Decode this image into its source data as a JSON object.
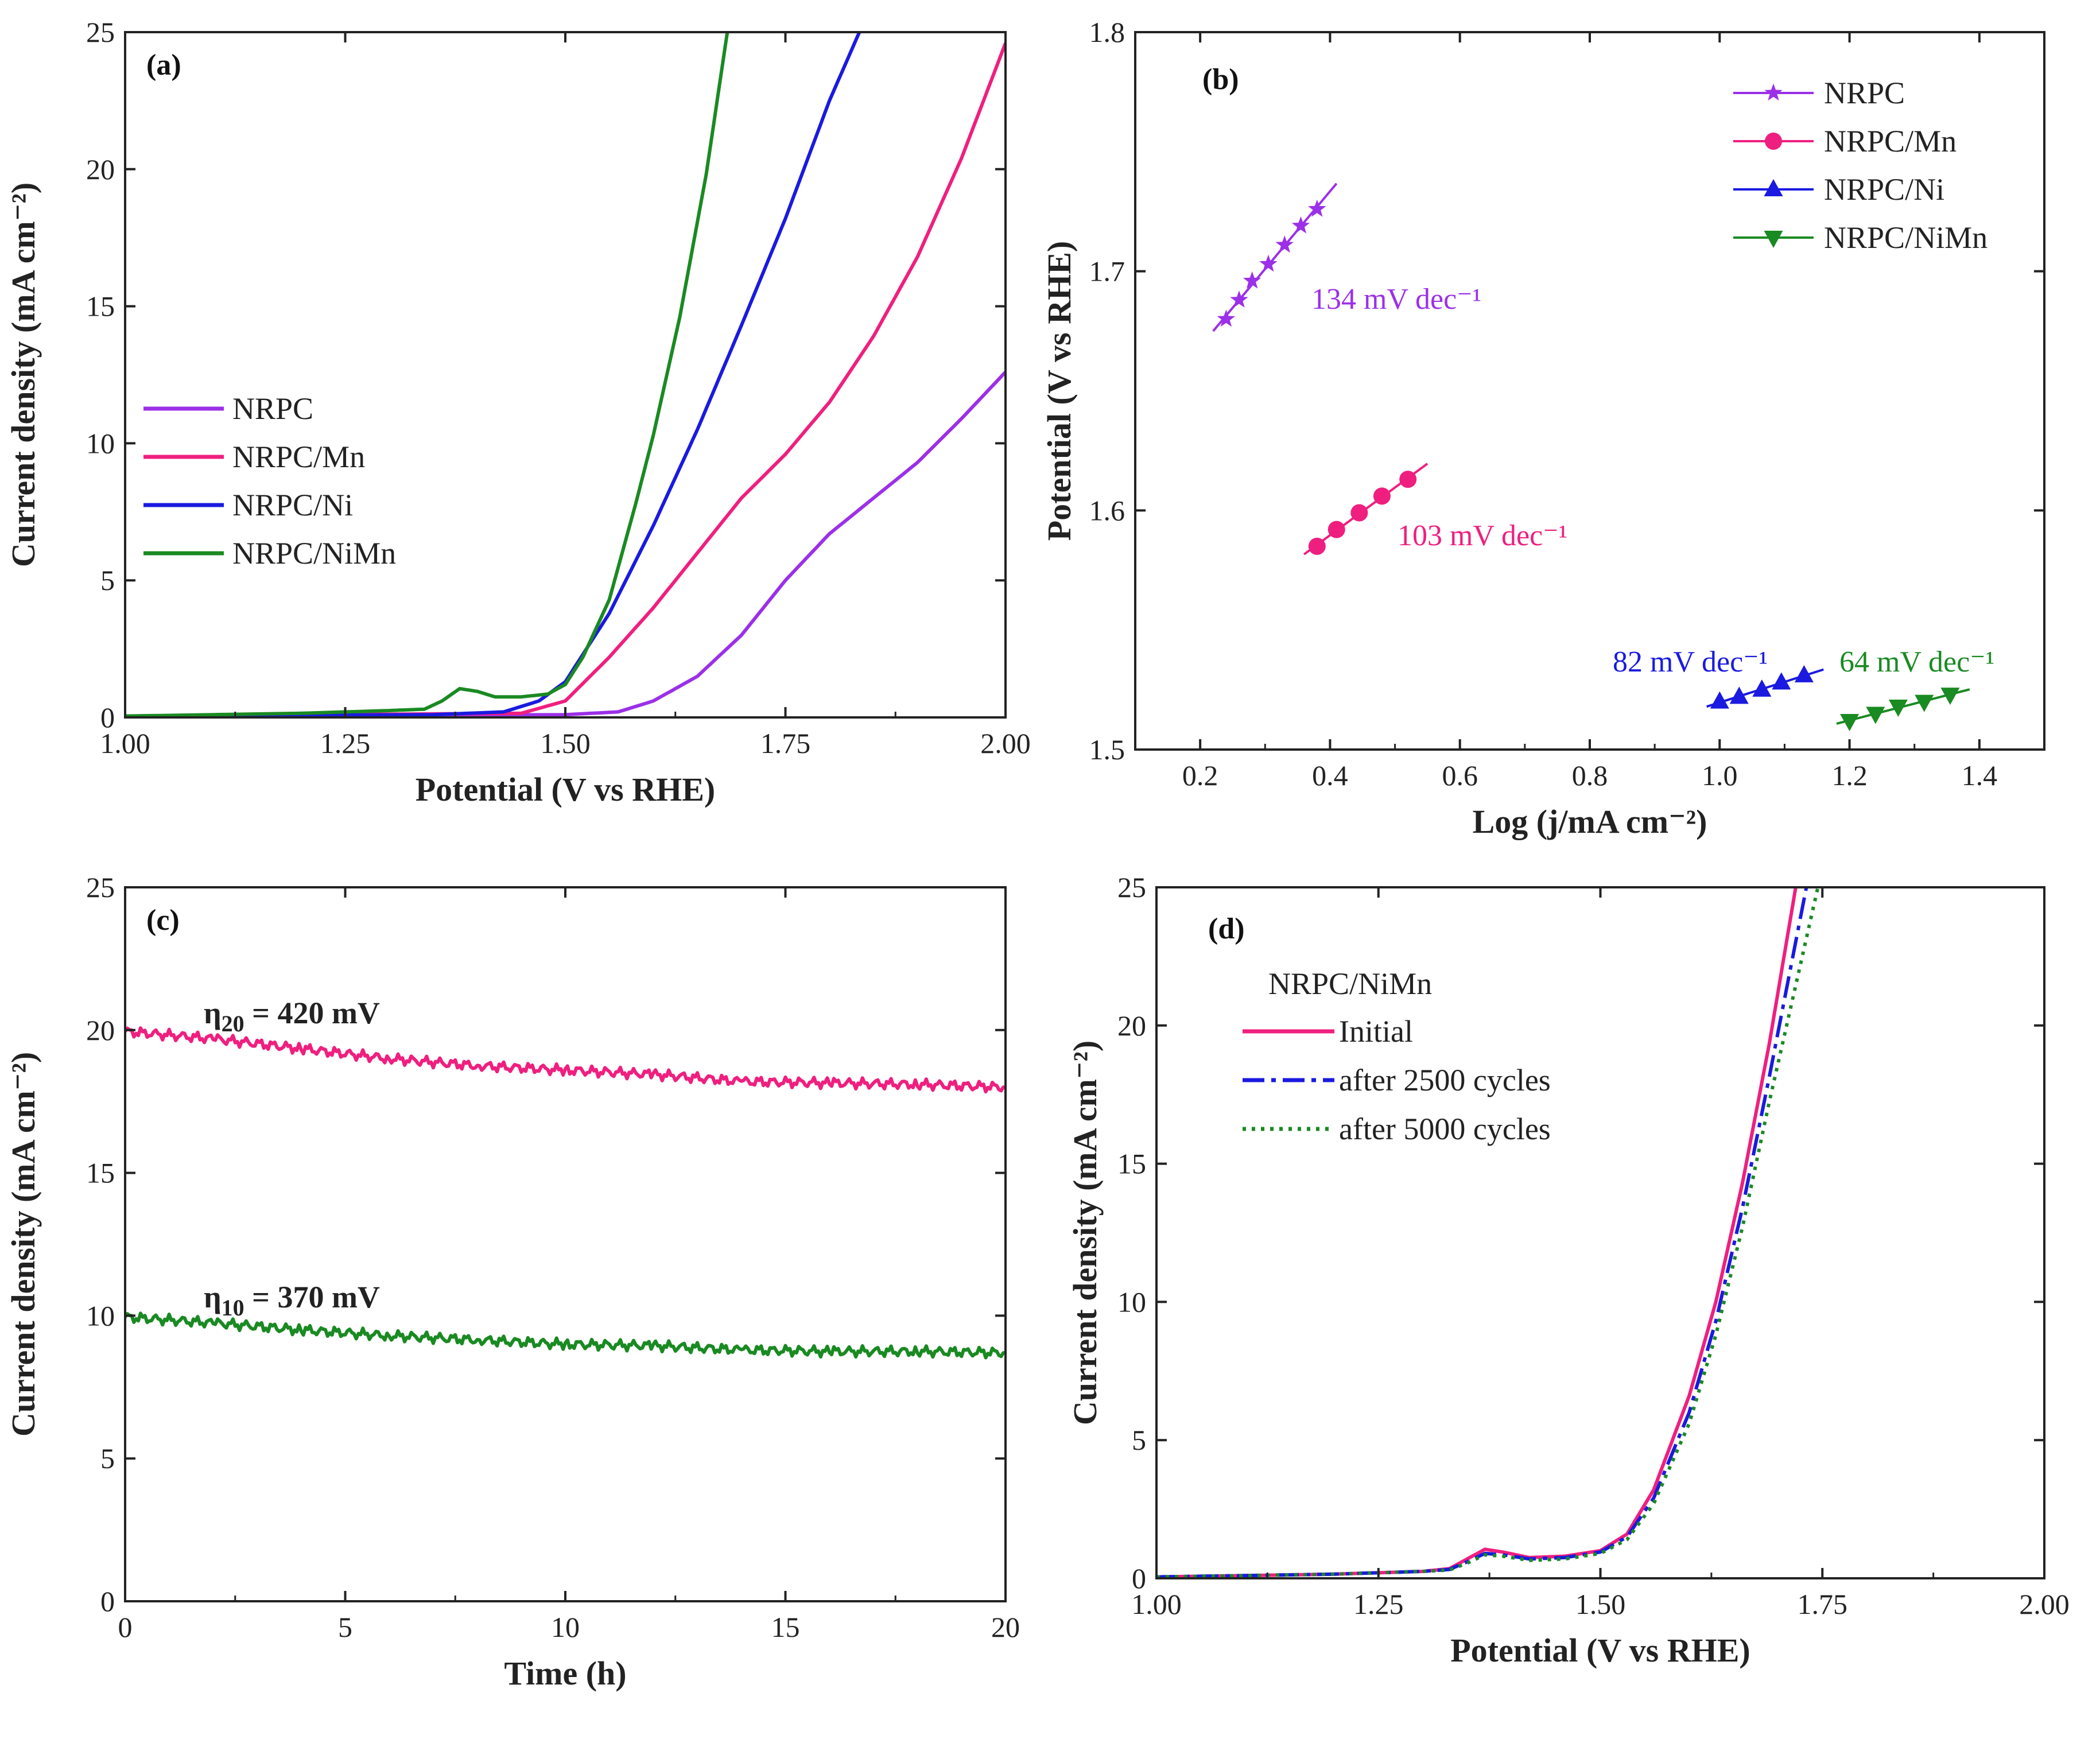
{
  "chart_data": [
    {
      "id": "a",
      "type": "line",
      "panel_label": "(a)",
      "xlabel": "Potential (V vs RHE)",
      "ylabel": "Current density (mA cm⁻²)",
      "xlim": [
        1.0,
        2.0
      ],
      "ylim": [
        0,
        25
      ],
      "xticks": [
        1.0,
        1.25,
        1.5,
        1.75,
        2.0
      ],
      "xtick_labels": [
        "1.00",
        "1.25",
        "1.50",
        "1.75",
        "2.00"
      ],
      "yticks": [
        0,
        5,
        10,
        15,
        20,
        25
      ],
      "ytick_labels": [
        "0",
        "5",
        "10",
        "15",
        "20",
        "25"
      ],
      "legend_position": "center-left",
      "series": [
        {
          "name": "NRPC",
          "color": "#9b30e8",
          "dash": "solid",
          "x": [
            1.0,
            1.5,
            1.56,
            1.6,
            1.65,
            1.7,
            1.75,
            1.8,
            1.85,
            1.9,
            1.95,
            2.0
          ],
          "y": [
            0.05,
            0.1,
            0.2,
            0.6,
            1.5,
            3.0,
            5.0,
            6.7,
            8.0,
            9.3,
            10.9,
            12.6
          ]
        },
        {
          "name": "NRPC/Mn",
          "color": "#ef1f7f",
          "dash": "solid",
          "x": [
            1.0,
            1.45,
            1.5,
            1.55,
            1.6,
            1.65,
            1.7,
            1.75,
            1.8,
            1.85,
            1.9,
            1.95,
            2.0
          ],
          "y": [
            0.05,
            0.15,
            0.6,
            2.2,
            4.0,
            6.0,
            8.0,
            9.6,
            11.5,
            13.9,
            16.8,
            20.4,
            24.6
          ]
        },
        {
          "name": "NRPC/Ni",
          "color": "#1a1ae0",
          "dash": "solid",
          "x": [
            1.0,
            1.35,
            1.43,
            1.47,
            1.5,
            1.55,
            1.6,
            1.65,
            1.7,
            1.75,
            1.8,
            1.834
          ],
          "y": [
            0.05,
            0.1,
            0.2,
            0.6,
            1.3,
            3.8,
            7.0,
            10.5,
            14.3,
            18.2,
            22.5,
            25.0
          ]
        },
        {
          "name": "NRPC/NiMn",
          "color": "#1a8a22",
          "dash": "solid",
          "x": [
            1.0,
            1.2,
            1.3,
            1.34,
            1.36,
            1.38,
            1.4,
            1.42,
            1.45,
            1.48,
            1.5,
            1.52,
            1.55,
            1.58,
            1.6,
            1.63,
            1.66,
            1.684
          ],
          "y": [
            0.05,
            0.15,
            0.25,
            0.3,
            0.6,
            1.05,
            0.95,
            0.75,
            0.75,
            0.85,
            1.2,
            2.2,
            4.3,
            7.8,
            10.3,
            14.6,
            19.8,
            25.0
          ]
        }
      ]
    },
    {
      "id": "b",
      "type": "scatter",
      "panel_label": "(b)",
      "xlabel": "Log (j/mA cm⁻²)",
      "ylabel": "Potential (V vs RHE)",
      "xlim": [
        0.1,
        1.5
      ],
      "ylim": [
        1.5,
        1.8
      ],
      "xticks": [
        0.2,
        0.4,
        0.6,
        0.8,
        1.0,
        1.2,
        1.4
      ],
      "xtick_labels": [
        "0.2",
        "0.4",
        "0.6",
        "0.8",
        "1.0",
        "1.2",
        "1.4"
      ],
      "yticks": [
        1.5,
        1.6,
        1.7,
        1.8
      ],
      "ytick_labels": [
        "1.5",
        "1.6",
        "1.7",
        "1.8"
      ],
      "legend_position": "top-right",
      "series": [
        {
          "name": "NRPC",
          "color": "#9b30e8",
          "marker": "star",
          "tafel": "134 mV dec⁻¹",
          "x": [
            0.24,
            0.26,
            0.28,
            0.305,
            0.33,
            0.355,
            0.38
          ],
          "y": [
            1.68,
            1.688,
            1.696,
            1.703,
            1.711,
            1.719,
            1.726
          ]
        },
        {
          "name": "NRPC/Mn",
          "color": "#ef1f7f",
          "marker": "circle",
          "tafel": "103 mV dec⁻¹",
          "x": [
            0.38,
            0.41,
            0.445,
            0.48,
            0.52
          ],
          "y": [
            1.585,
            1.592,
            1.599,
            1.606,
            1.613
          ]
        },
        {
          "name": "NRPC/Ni",
          "color": "#1a1ae0",
          "marker": "triangle-up",
          "tafel": "82 mV dec⁻¹",
          "x": [
            1.0,
            1.03,
            1.065,
            1.095,
            1.13
          ],
          "y": [
            1.52,
            1.522,
            1.525,
            1.528,
            1.531
          ]
        },
        {
          "name": "NRPC/NiMn",
          "color": "#1a8a22",
          "marker": "triangle-down",
          "tafel": "64 mV dec⁻¹",
          "x": [
            1.2,
            1.24,
            1.275,
            1.315,
            1.355
          ],
          "y": [
            1.512,
            1.515,
            1.518,
            1.52,
            1.523
          ]
        }
      ]
    },
    {
      "id": "c",
      "type": "line",
      "panel_label": "(c)",
      "xlabel": "Time (h)",
      "ylabel": "Current density (mA cm⁻²)",
      "xlim": [
        0,
        20
      ],
      "ylim": [
        0,
        25
      ],
      "xticks": [
        0,
        5,
        10,
        15,
        20
      ],
      "xtick_labels": [
        "0",
        "5",
        "10",
        "15",
        "20"
      ],
      "yticks": [
        0,
        5,
        10,
        15,
        20,
        25
      ],
      "ytick_labels": [
        "0",
        "5",
        "10",
        "15",
        "20",
        "25"
      ],
      "annotations": [
        {
          "eta": "η",
          "sub": "20",
          "rest": " = 420 mV"
        },
        {
          "eta": "η",
          "sub": "10",
          "rest": " = 370 mV"
        }
      ],
      "series": [
        {
          "name": "η₂₀ = 420 mV",
          "color": "#ef1f7f",
          "dash": "solid",
          "x": [
            0,
            2,
            4,
            6,
            8,
            10,
            12,
            14,
            16,
            18,
            20
          ],
          "y": [
            19.95,
            19.7,
            19.35,
            19.0,
            18.75,
            18.6,
            18.45,
            18.2,
            18.15,
            18.1,
            18.0
          ]
        },
        {
          "name": "η₁₀ = 370 mV",
          "color": "#1a8a22",
          "dash": "solid",
          "x": [
            0,
            2,
            4,
            6,
            8,
            10,
            12,
            14,
            16,
            18,
            20
          ],
          "y": [
            9.95,
            9.75,
            9.5,
            9.3,
            9.15,
            9.0,
            8.95,
            8.8,
            8.75,
            8.75,
            8.7
          ]
        }
      ]
    },
    {
      "id": "d",
      "type": "line",
      "panel_label": "(d)",
      "legend_title": "NRPC/NiMn",
      "xlabel": "Potential (V vs RHE)",
      "ylabel": "Current density (mA cm⁻²)",
      "xlim": [
        1.0,
        2.0
      ],
      "ylim": [
        0,
        25
      ],
      "xticks": [
        1.0,
        1.25,
        1.5,
        1.75,
        2.0
      ],
      "xtick_labels": [
        "1.00",
        "1.25",
        "1.50",
        "1.75",
        "2.00"
      ],
      "yticks": [
        0,
        5,
        10,
        15,
        20,
        25
      ],
      "ytick_labels": [
        "0",
        "5",
        "10",
        "15",
        "20",
        "25"
      ],
      "legend_position": "top-left",
      "series": [
        {
          "name": "Initial",
          "color": "#ef1f7f",
          "dash": "solid",
          "x": [
            1.0,
            1.2,
            1.3,
            1.33,
            1.35,
            1.37,
            1.39,
            1.42,
            1.46,
            1.5,
            1.53,
            1.56,
            1.6,
            1.63,
            1.66,
            1.69,
            1.72
          ],
          "y": [
            0.05,
            0.15,
            0.25,
            0.35,
            0.7,
            1.05,
            0.95,
            0.75,
            0.8,
            1.0,
            1.6,
            3.2,
            6.6,
            10.0,
            14.3,
            19.3,
            25.0
          ]
        },
        {
          "name": "after 2500 cycles",
          "color": "#1a1ae0",
          "dash": "dashdot",
          "x": [
            1.0,
            1.2,
            1.3,
            1.33,
            1.35,
            1.37,
            1.39,
            1.42,
            1.46,
            1.5,
            1.53,
            1.56,
            1.6,
            1.63,
            1.66,
            1.69,
            1.732
          ],
          "y": [
            0.05,
            0.15,
            0.25,
            0.32,
            0.6,
            0.9,
            0.85,
            0.7,
            0.75,
            0.95,
            1.5,
            2.9,
            6.0,
            9.3,
            13.4,
            18.1,
            25.0
          ]
        },
        {
          "name": "after 5000 cycles",
          "color": "#1a8a22",
          "dash": "dotted",
          "x": [
            1.0,
            1.2,
            1.3,
            1.33,
            1.35,
            1.37,
            1.39,
            1.42,
            1.46,
            1.5,
            1.53,
            1.56,
            1.6,
            1.63,
            1.66,
            1.69,
            1.745
          ],
          "y": [
            0.05,
            0.15,
            0.25,
            0.3,
            0.55,
            0.85,
            0.8,
            0.65,
            0.7,
            0.9,
            1.4,
            2.7,
            5.6,
            8.8,
            12.7,
            17.2,
            25.0
          ]
        }
      ]
    }
  ]
}
